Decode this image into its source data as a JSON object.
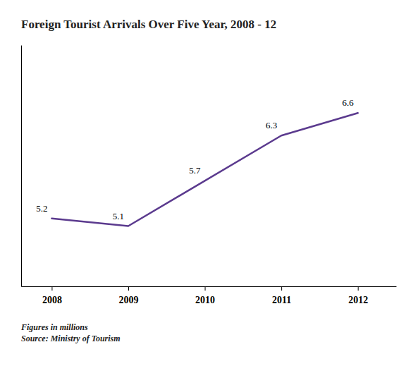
{
  "chart_data": {
    "type": "line",
    "title": "Foreign Tourist Arrivals Over Five Year, 2008 - 12",
    "x": [
      2008,
      2009,
      2010,
      2011,
      2012
    ],
    "values": [
      5.2,
      5.1,
      5.7,
      6.3,
      6.6
    ],
    "color": "#5b3a8e",
    "xlim": [
      2007.6,
      2012.5
    ],
    "xticks": [
      2008,
      2009,
      2010,
      2011,
      2012
    ],
    "ylim": [
      4.3,
      7.5
    ],
    "tick_labels": "x",
    "data_labels": true,
    "grid": false,
    "annotations": [
      "Figures in millions",
      "Source: Ministry of Tourism"
    ]
  }
}
